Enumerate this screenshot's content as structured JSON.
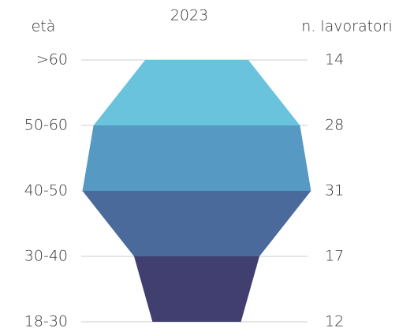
{
  "chart_data": {
    "type": "funnel",
    "title": "2023",
    "left_label": "età",
    "right_label": "n. lavoratori",
    "categories": [
      ">60",
      "50-60",
      "40-50",
      "30-40",
      "18-30"
    ],
    "values": [
      14,
      28,
      31,
      17,
      12
    ],
    "colors": [
      "#6ac3dc",
      "#5699c3",
      "#4a6a9c",
      "#413e70"
    ],
    "grid": true
  }
}
